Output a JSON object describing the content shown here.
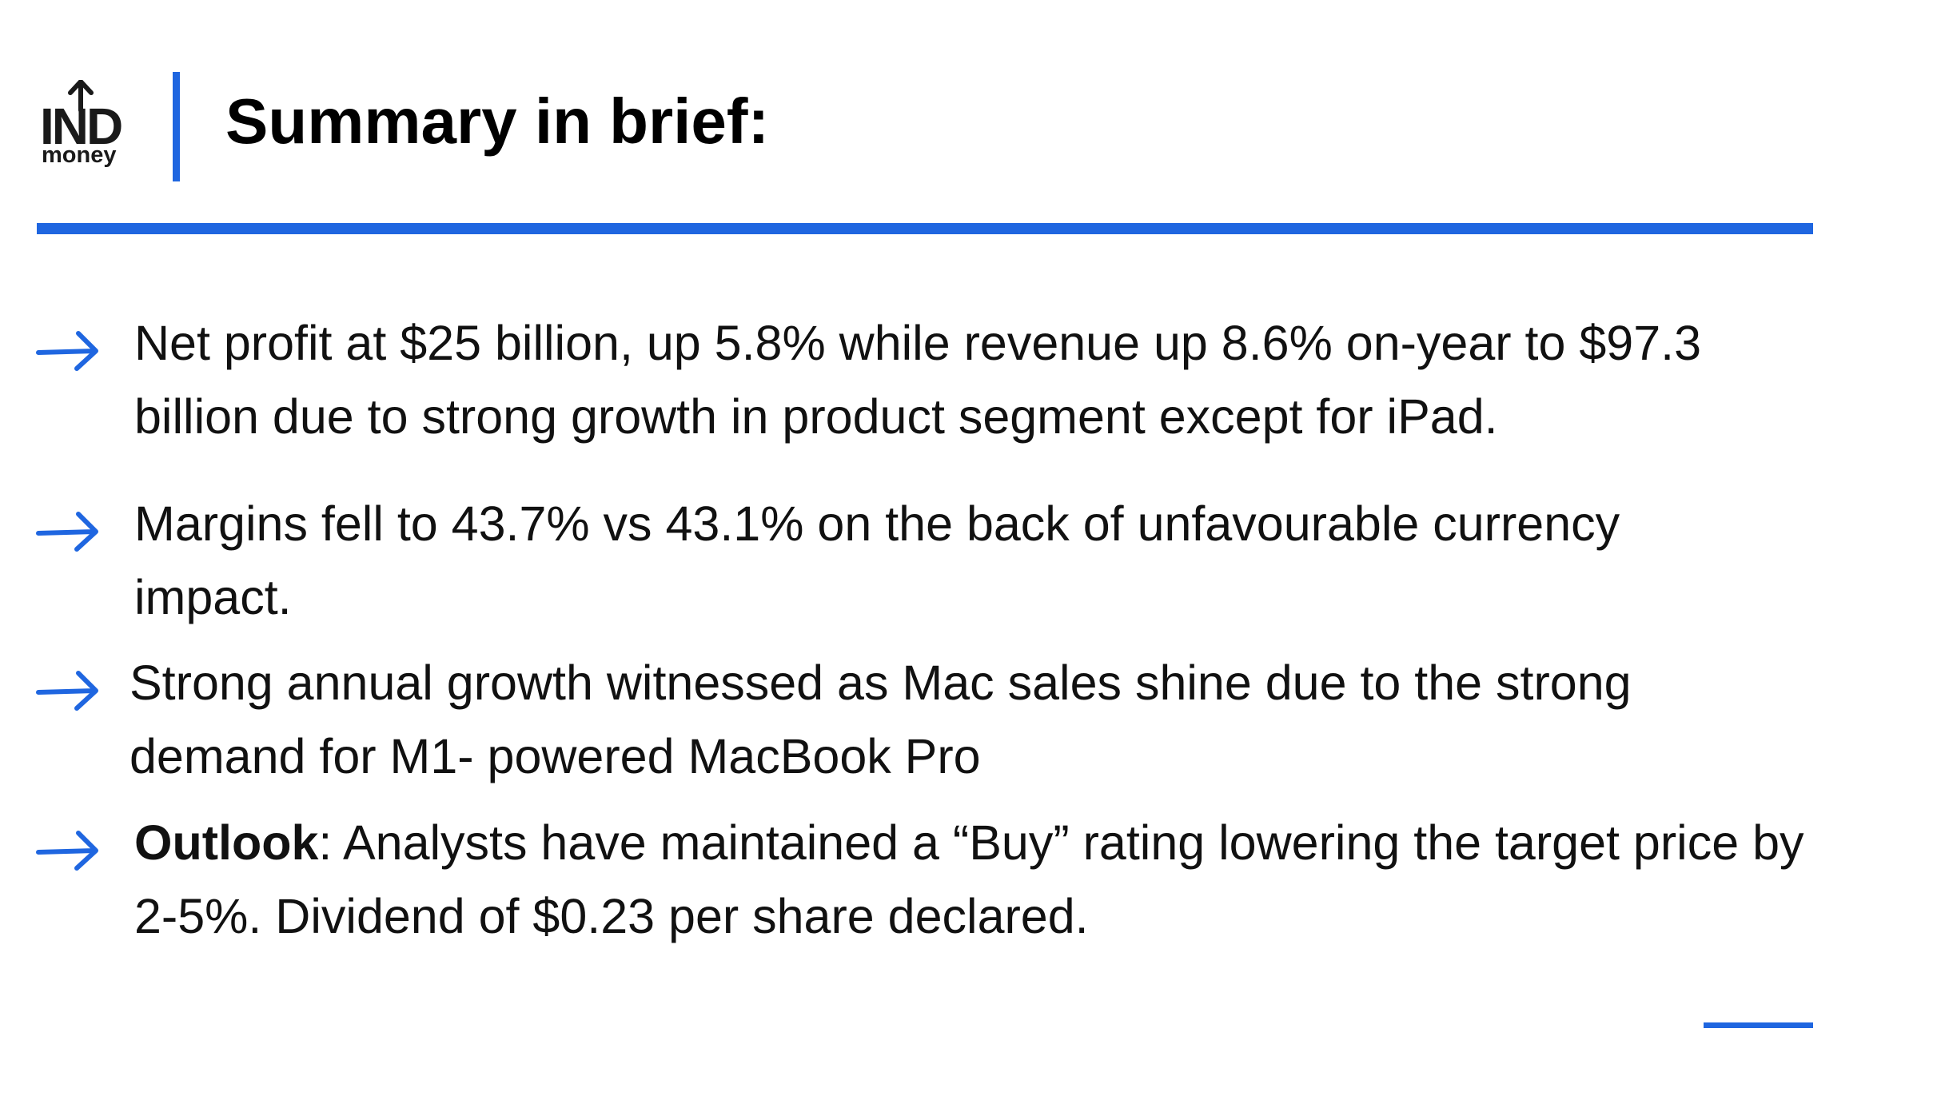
{
  "brand": {
    "logo_mark": "IND",
    "logo_word": "money",
    "accent_color": "#1f66e0"
  },
  "header": {
    "title": "Summary in brief:"
  },
  "bullets": [
    {
      "lead": "",
      "text": "Net profit at $25 billion, up 5.8% while revenue up 8.6% on-year to $97.3 billion due to strong growth in product segment except for iPad."
    },
    {
      "lead": "",
      "text": "Margins fell to 43.7% vs 43.1% on the back of unfavourable currency impact."
    },
    {
      "lead": "",
      "text": "Strong annual growth witnessed as Mac sales shine due to the strong demand for M1- powered MacBook Pro"
    },
    {
      "lead": "Outlook",
      "text": ": Analysts have maintained a “Buy” rating lowering the target price by 2-5%. Dividend of $0.23 per share declared."
    }
  ],
  "icons": {
    "bullet_icon": "arrow-right-icon",
    "logo_icon": "up-arrow-icon"
  }
}
